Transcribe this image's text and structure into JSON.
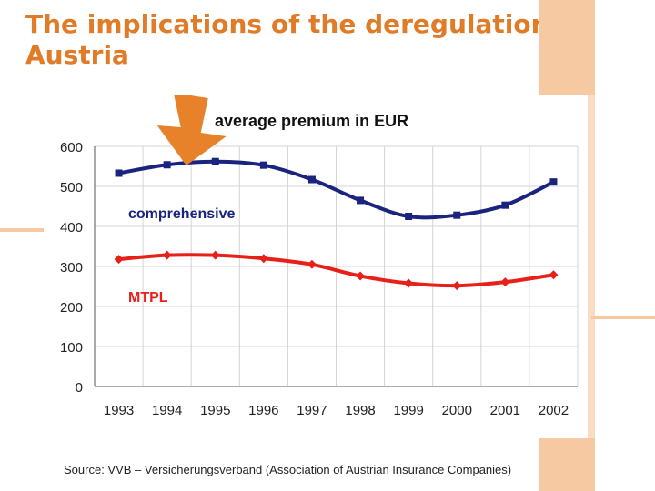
{
  "slide": {
    "title": "The implications of the deregulation in Austria",
    "source": "Source: VVB – Versicherungsverband (Association of Austrian Insurance Companies)"
  },
  "colors": {
    "title": "#e07b28",
    "arrow": "#e8822a",
    "comprehensive": "#1a237e",
    "mtpl": "#e8201a",
    "grid": "#d4d4d4",
    "axis": "#555555"
  },
  "chart_data": {
    "type": "line",
    "title": "average premium in EUR",
    "xlabel": "",
    "ylabel": "",
    "categories": [
      "1993",
      "1994",
      "1995",
      "1996",
      "1997",
      "1998",
      "1999",
      "2000",
      "2001",
      "2002"
    ],
    "ylim": [
      0,
      600
    ],
    "yticks": [
      0,
      100,
      200,
      300,
      400,
      500,
      600
    ],
    "grid": true,
    "series": [
      {
        "name": "comprehensive",
        "color": "#1a237e",
        "marker": "square",
        "values": [
          533,
          554,
          562,
          553,
          517,
          465,
          425,
          428,
          453,
          511
        ]
      },
      {
        "name": "MTPL",
        "color": "#e8201a",
        "marker": "diamond",
        "values": [
          318,
          328,
          328,
          320,
          305,
          276,
          258,
          252,
          261,
          279
        ]
      }
    ],
    "annotation": {
      "type": "arrow",
      "points_to_year": "1995",
      "direction": "down"
    }
  }
}
